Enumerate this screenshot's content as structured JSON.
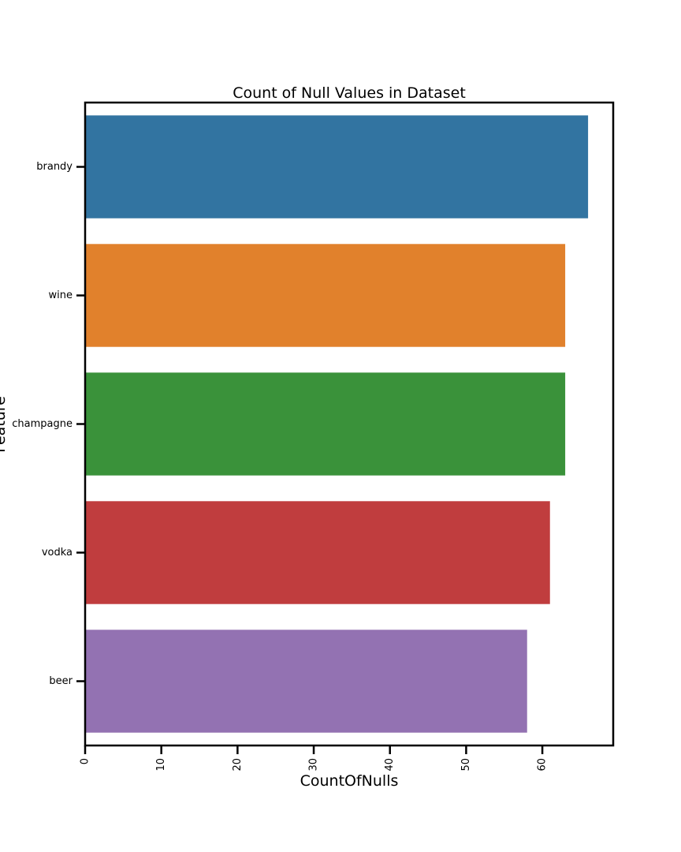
{
  "chart_data": {
    "type": "bar",
    "orientation": "horizontal",
    "title": "Count of Null Values in Dataset",
    "xlabel": "CountOfNulls",
    "ylabel": "Feature",
    "categories": [
      "brandy",
      "wine",
      "champagne",
      "vodka",
      "beer"
    ],
    "values": [
      66,
      63,
      63,
      61,
      58
    ],
    "colors": [
      "#3274a1",
      "#e1812c",
      "#3a923a",
      "#c03d3e",
      "#9372b2"
    ],
    "xlim": [
      0,
      69.3
    ],
    "xticks": [
      0,
      10,
      20,
      30,
      40,
      50,
      60
    ],
    "grid": false,
    "legend": "none"
  }
}
